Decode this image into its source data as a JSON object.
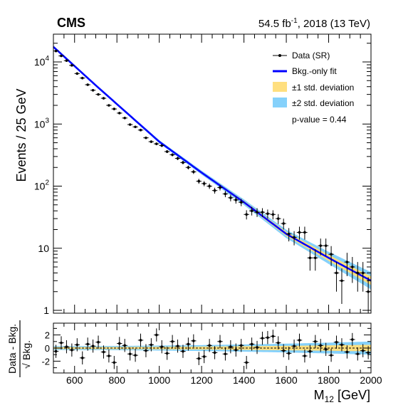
{
  "header": {
    "experiment": "CMS",
    "lumi_prefix": "54.5 fb",
    "lumi_sup": "-1",
    "lumi_suffix": ", 2018 (13 TeV)"
  },
  "legend": {
    "data": "Data (SR)",
    "fit": "Bkg.-only fit",
    "band1": "±1 std. deviation",
    "band2": "±2 std. deviation",
    "pvalue": "p-value = 0.44"
  },
  "colors": {
    "fit": "#0000ff",
    "band1": "#ffdf7f",
    "band2": "#85d1fb",
    "data": "#000000"
  },
  "chart_data": [
    {
      "type": "scatter",
      "panel": "main",
      "yscale": "log",
      "ylabel": "Events / 25 GeV",
      "xlim": [
        500,
        2000
      ],
      "ylim": [
        0.9,
        28000
      ],
      "y_ticks": [
        {
          "value": 1,
          "label": "1"
        },
        {
          "value": 10,
          "label": "10"
        },
        {
          "value": 100,
          "label": "10",
          "sup": "2"
        },
        {
          "value": 1000,
          "label": "10",
          "sup": "3"
        },
        {
          "value": 10000,
          "label": "10",
          "sup": "4"
        }
      ],
      "fit": {
        "name": "Bkg.-only fit",
        "x": [
          500,
          700,
          1000,
          1200,
          1400,
          1600,
          1800,
          2000
        ],
        "y": [
          17500,
          4200,
          520,
          165,
          55,
          17,
          7,
          3
        ]
      },
      "series": [
        {
          "name": "Data (SR)",
          "x": [
            512,
            537,
            562,
            587,
            612,
            637,
            662,
            687,
            712,
            737,
            762,
            787,
            812,
            837,
            862,
            887,
            912,
            937,
            962,
            987,
            1012,
            1037,
            1062,
            1087,
            1112,
            1137,
            1162,
            1187,
            1212,
            1237,
            1262,
            1287,
            1312,
            1337,
            1362,
            1387,
            1412,
            1437,
            1462,
            1487,
            1512,
            1537,
            1562,
            1587,
            1612,
            1637,
            1662,
            1687,
            1712,
            1737,
            1762,
            1787,
            1812,
            1837,
            1862,
            1887,
            1912,
            1937,
            1962,
            1987
          ],
          "y": [
            15000,
            12500,
            10500,
            8800,
            6500,
            5500,
            4300,
            3500,
            3000,
            2600,
            2000,
            1750,
            1500,
            1250,
            980,
            900,
            800,
            600,
            520,
            480,
            450,
            360,
            320,
            280,
            240,
            200,
            170,
            120,
            110,
            100,
            85,
            95,
            75,
            65,
            60,
            55,
            35,
            40,
            38,
            38,
            36,
            35,
            30,
            25,
            17,
            15,
            18,
            18,
            7,
            7,
            11,
            11,
            8,
            4,
            3,
            6,
            5,
            4,
            4,
            2
          ]
        }
      ]
    },
    {
      "type": "scatter",
      "panel": "ratio",
      "ylabel": "Data - Bkg. / √Bkg.",
      "xlabel": "M12 [GeV]",
      "xlim": [
        500,
        2000
      ],
      "ylim": [
        -3.8,
        3.8
      ],
      "x_ticks": [
        600,
        800,
        1000,
        1200,
        1400,
        1600,
        1800,
        2000
      ],
      "y_ticks": [
        -2,
        0,
        2
      ],
      "series": [
        {
          "name": "pulls",
          "x": [
            512,
            537,
            562,
            587,
            612,
            637,
            662,
            687,
            712,
            737,
            762,
            787,
            812,
            837,
            862,
            887,
            912,
            937,
            962,
            987,
            1012,
            1037,
            1062,
            1087,
            1112,
            1137,
            1162,
            1187,
            1212,
            1237,
            1262,
            1287,
            1312,
            1337,
            1362,
            1387,
            1412,
            1437,
            1462,
            1487,
            1512,
            1537,
            1562,
            1587,
            1612,
            1637,
            1662,
            1687,
            1712,
            1737,
            1762,
            1787,
            1812,
            1837,
            1862,
            1887,
            1912,
            1937,
            1962,
            1987
          ],
          "y": [
            -0.5,
            0.8,
            0.2,
            -0.3,
            0.5,
            -1.5,
            0.6,
            0.3,
            0.9,
            -0.6,
            -1.2,
            -2.2,
            0.7,
            0.4,
            -0.9,
            -1.1,
            1.2,
            -0.4,
            0.5,
            2.0,
            0.2,
            -0.8,
            1.0,
            0.3,
            -0.5,
            0.6,
            1.1,
            -1.6,
            -1.3,
            0.4,
            -0.7,
            1.0,
            -0.9,
            0.2,
            -0.3,
            0.4,
            -2.2,
            0.6,
            0.1,
            1.5,
            1.6,
            1.8,
            0.8,
            -0.4,
            -0.8,
            0.3,
            1.2,
            -1.2,
            -0.5,
            1.0,
            0.4,
            -0.2,
            -1.1,
            0.9,
            0.5,
            -0.6,
            1.3,
            -0.9,
            -0.4,
            -0.7
          ]
        }
      ]
    }
  ],
  "axis_text": {
    "ylabel_main": "Events / 25 GeV",
    "ratio_ylabel_num": "Data - Bkg.",
    "ratio_ylabel_den": "Bkg.",
    "sqrt_sign": "√",
    "xlabel_main": "M",
    "xlabel_sub": "12",
    "xlabel_unit": " [GeV]"
  }
}
